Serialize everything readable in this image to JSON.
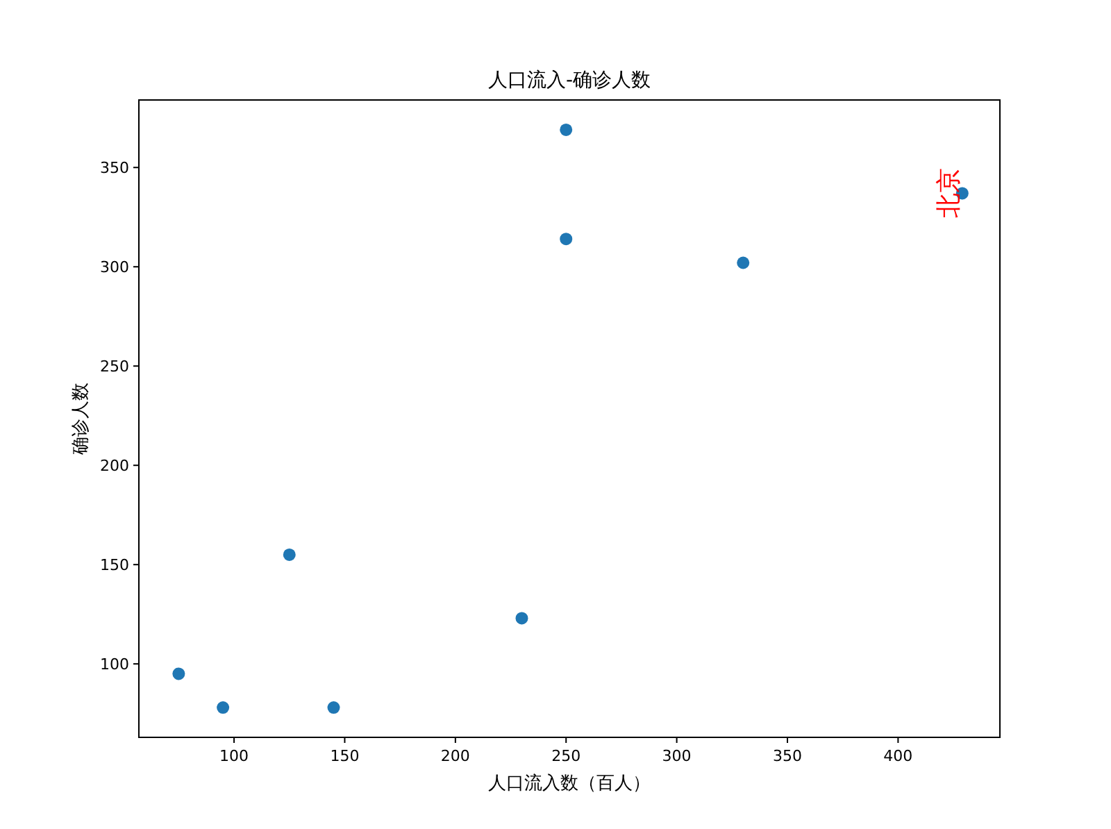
{
  "chart_data": {
    "type": "scatter",
    "title": "人口流入-确诊人数",
    "xlabel": "人口流入数（百人）",
    "ylabel": "确诊人数",
    "x": [
      75,
      95,
      145,
      125,
      230,
      250,
      250,
      330,
      429
    ],
    "values": [
      95,
      78,
      78,
      155,
      123,
      314,
      369,
      302,
      337
    ],
    "color": "#1f77b4",
    "marker": "circle",
    "xlim": [
      57,
      446
    ],
    "ylim": [
      63,
      384
    ],
    "xticks": [
      100,
      150,
      200,
      250,
      300,
      350,
      400
    ],
    "yticks": [
      100,
      150,
      200,
      250,
      300,
      350
    ],
    "annotations": [
      {
        "text": "北京",
        "x": 429,
        "y": 337
      }
    ]
  }
}
